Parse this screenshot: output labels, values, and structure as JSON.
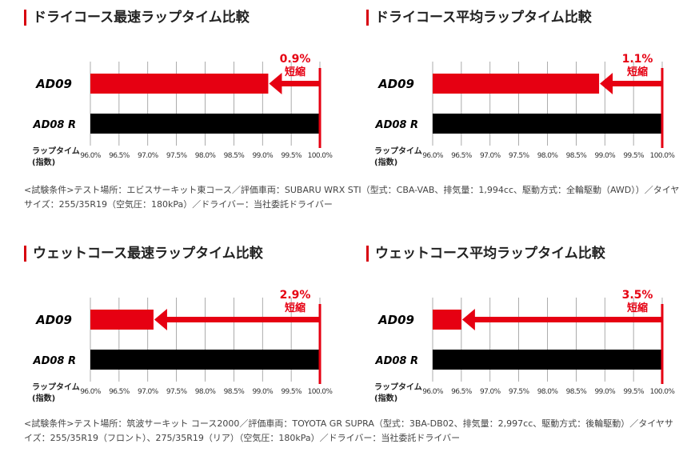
{
  "colors": {
    "accent": "#e60012",
    "ad08r": "#000000",
    "grid": "#999999"
  },
  "chart_data": [
    {
      "type": "bar",
      "title": "ドライコース最速ラップタイム比較",
      "categories": [
        "AD09",
        "AD08 R"
      ],
      "values": [
        99.1,
        100.0
      ],
      "xlim": [
        96.0,
        100.0
      ],
      "ticks": [
        "96.0%",
        "96.5%",
        "97.0%",
        "97.5%",
        "98.0%",
        "98.5%",
        "99.0%",
        "99.5%",
        "100.0%"
      ],
      "ylabel": "ラップタイム\n(指数)",
      "annotation": [
        "0.9%",
        "短縮"
      ],
      "grid": true
    },
    {
      "type": "bar",
      "title": "ドライコース平均ラップタイム比較",
      "categories": [
        "AD09",
        "AD08 R"
      ],
      "values": [
        98.9,
        100.0
      ],
      "xlim": [
        96.0,
        100.0
      ],
      "ticks": [
        "96.0%",
        "96.5%",
        "97.0%",
        "97.5%",
        "98.0%",
        "98.5%",
        "99.0%",
        "99.5%",
        "100.0%"
      ],
      "ylabel": "ラップタイム\n(指数)",
      "annotation": [
        "1.1%",
        "短縮"
      ],
      "grid": true
    },
    {
      "type": "bar",
      "title": "ウェットコース最速ラップタイム比較",
      "categories": [
        "AD09",
        "AD08 R"
      ],
      "values": [
        97.1,
        100.0
      ],
      "xlim": [
        96.0,
        100.0
      ],
      "ticks": [
        "96.0%",
        "96.5%",
        "97.0%",
        "97.5%",
        "98.0%",
        "98.5%",
        "99.0%",
        "99.5%",
        "100.0%"
      ],
      "ylabel": "ラップタイム\n(指数)",
      "annotation": [
        "2.9%",
        "短縮"
      ],
      "grid": true
    },
    {
      "type": "bar",
      "title": "ウェットコース平均ラップタイム比較",
      "categories": [
        "AD09",
        "AD08 R"
      ],
      "values": [
        96.5,
        100.0
      ],
      "xlim": [
        96.0,
        100.0
      ],
      "ticks": [
        "96.0%",
        "96.5%",
        "97.0%",
        "97.5%",
        "98.0%",
        "98.5%",
        "99.0%",
        "99.5%",
        "100.0%"
      ],
      "ylabel": "ラップタイム\n(指数)",
      "annotation": [
        "3.5%",
        "短縮"
      ],
      "grid": true
    }
  ],
  "conditions": {
    "dry": "<試験条件>テスト場所：エビスサーキット東コース／評価車両：SUBARU WRX STI（型式：CBA-VAB、排気量：1,994cc、駆動方式：全輪駆動（AWD））／タイヤサイズ：255/35R19（空気圧：180kPa）／ドライバー：当社委託ドライバー",
    "wet": "<試験条件>テスト場所：筑波サーキット コース2000／評価車両：TOYOTA GR SUPRA（型式：3BA-DB02、排気量：2,997cc、駆動方式：後輪駆動）／タイヤサイズ：255/35R19（フロント）、275/35R19（リア）（空気圧：180kPa）／ドライバー：当社委託ドライバー"
  }
}
